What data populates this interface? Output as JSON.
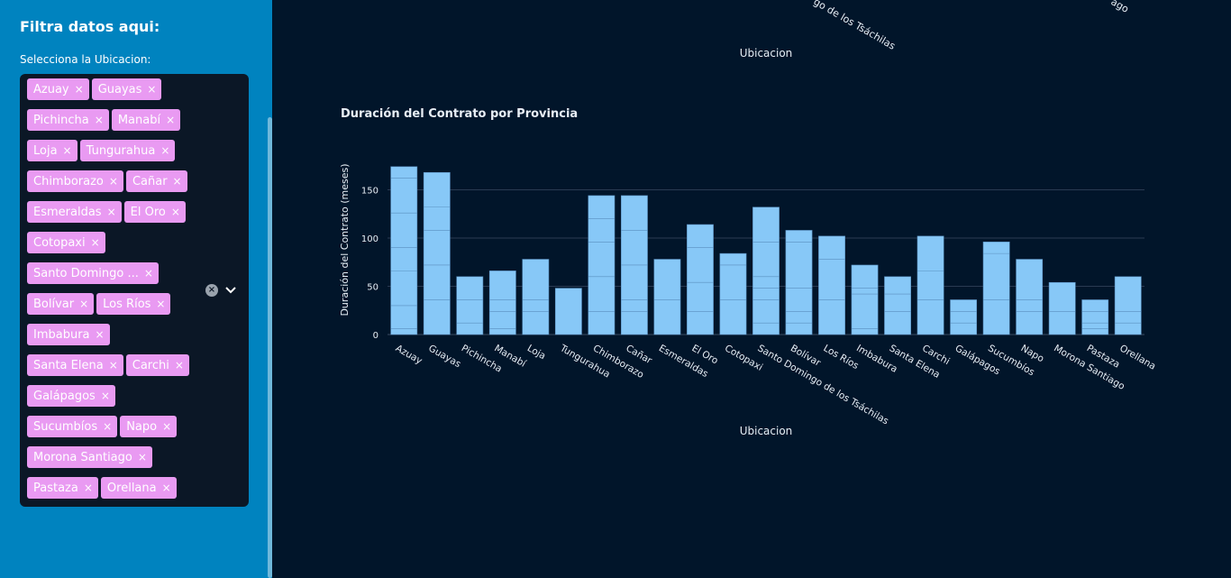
{
  "sidebar": {
    "title": "Filtra datos aqui:",
    "select_label": "Selecciona la Ubicacion:",
    "tags": [
      "Azuay",
      "Guayas",
      "Pichincha",
      "Manabí",
      "Loja",
      "Tungurahua",
      "Chimborazo",
      "Cañar",
      "Esmeraldas",
      "El Oro",
      "Cotopaxi",
      "Santo Domingo ...",
      "Bolívar",
      "Los Ríos",
      "Imbabura",
      "Santa Elena",
      "Carchi",
      "Galápagos",
      "Sucumbíos",
      "Napo",
      "Morona Santiago",
      "Pastaza",
      "Orellana"
    ],
    "remove_glyph": "×",
    "clear_glyph": "×"
  },
  "top_chart_fragment": {
    "xlabel": "Ubicacion",
    "tick_fragments": [
      "go de los Tsáchilas",
      "ago"
    ]
  },
  "chart_data": {
    "type": "bar",
    "title": "Duración del Contrato por Provincia",
    "xlabel": "Ubicacion",
    "ylabel": "Duración del Contrato (meses)",
    "ylim": [
      0,
      180
    ],
    "yticks": [
      0,
      50,
      100,
      150
    ],
    "grid": true,
    "bar_color": "#87c8f7",
    "categories": [
      "Azuay",
      "Guayas",
      "Pichincha",
      "Manabí",
      "Loja",
      "Tungurahua",
      "Chimborazo",
      "Cañar",
      "Esmeraldas",
      "El Oro",
      "Cotopaxi",
      "Santo Domingo de los Tsáchilas",
      "Bolívar",
      "Los Ríos",
      "Imbabura",
      "Santa Elena",
      "Carchi",
      "Galápagos",
      "Sucumbíos",
      "Napo",
      "Morona Santiago",
      "Pastaza",
      "Orellana"
    ],
    "values": [
      174,
      168,
      60,
      66,
      78,
      48,
      144,
      144,
      78,
      114,
      84,
      132,
      108,
      102,
      72,
      60,
      102,
      36,
      96,
      78,
      54,
      36,
      60
    ],
    "segments": [
      [
        6,
        30,
        66,
        90,
        126,
        162
      ],
      [
        36,
        72,
        108,
        132
      ],
      [
        12,
        36
      ],
      [
        6,
        24,
        36
      ],
      [
        24,
        36
      ],
      [],
      [
        24,
        60,
        96,
        120
      ],
      [
        24,
        36,
        72,
        108
      ],
      [
        36
      ],
      [
        24,
        54,
        90
      ],
      [
        36,
        72
      ],
      [
        12,
        36,
        48,
        60,
        96
      ],
      [
        12,
        24,
        48,
        96
      ],
      [
        36,
        78
      ],
      [
        6,
        42,
        48
      ],
      [
        24,
        42
      ],
      [
        36,
        66
      ],
      [
        12,
        24
      ],
      [
        36,
        84
      ],
      [
        24,
        36
      ],
      [
        24
      ],
      [
        6,
        12,
        24
      ],
      [
        12,
        24
      ]
    ]
  }
}
